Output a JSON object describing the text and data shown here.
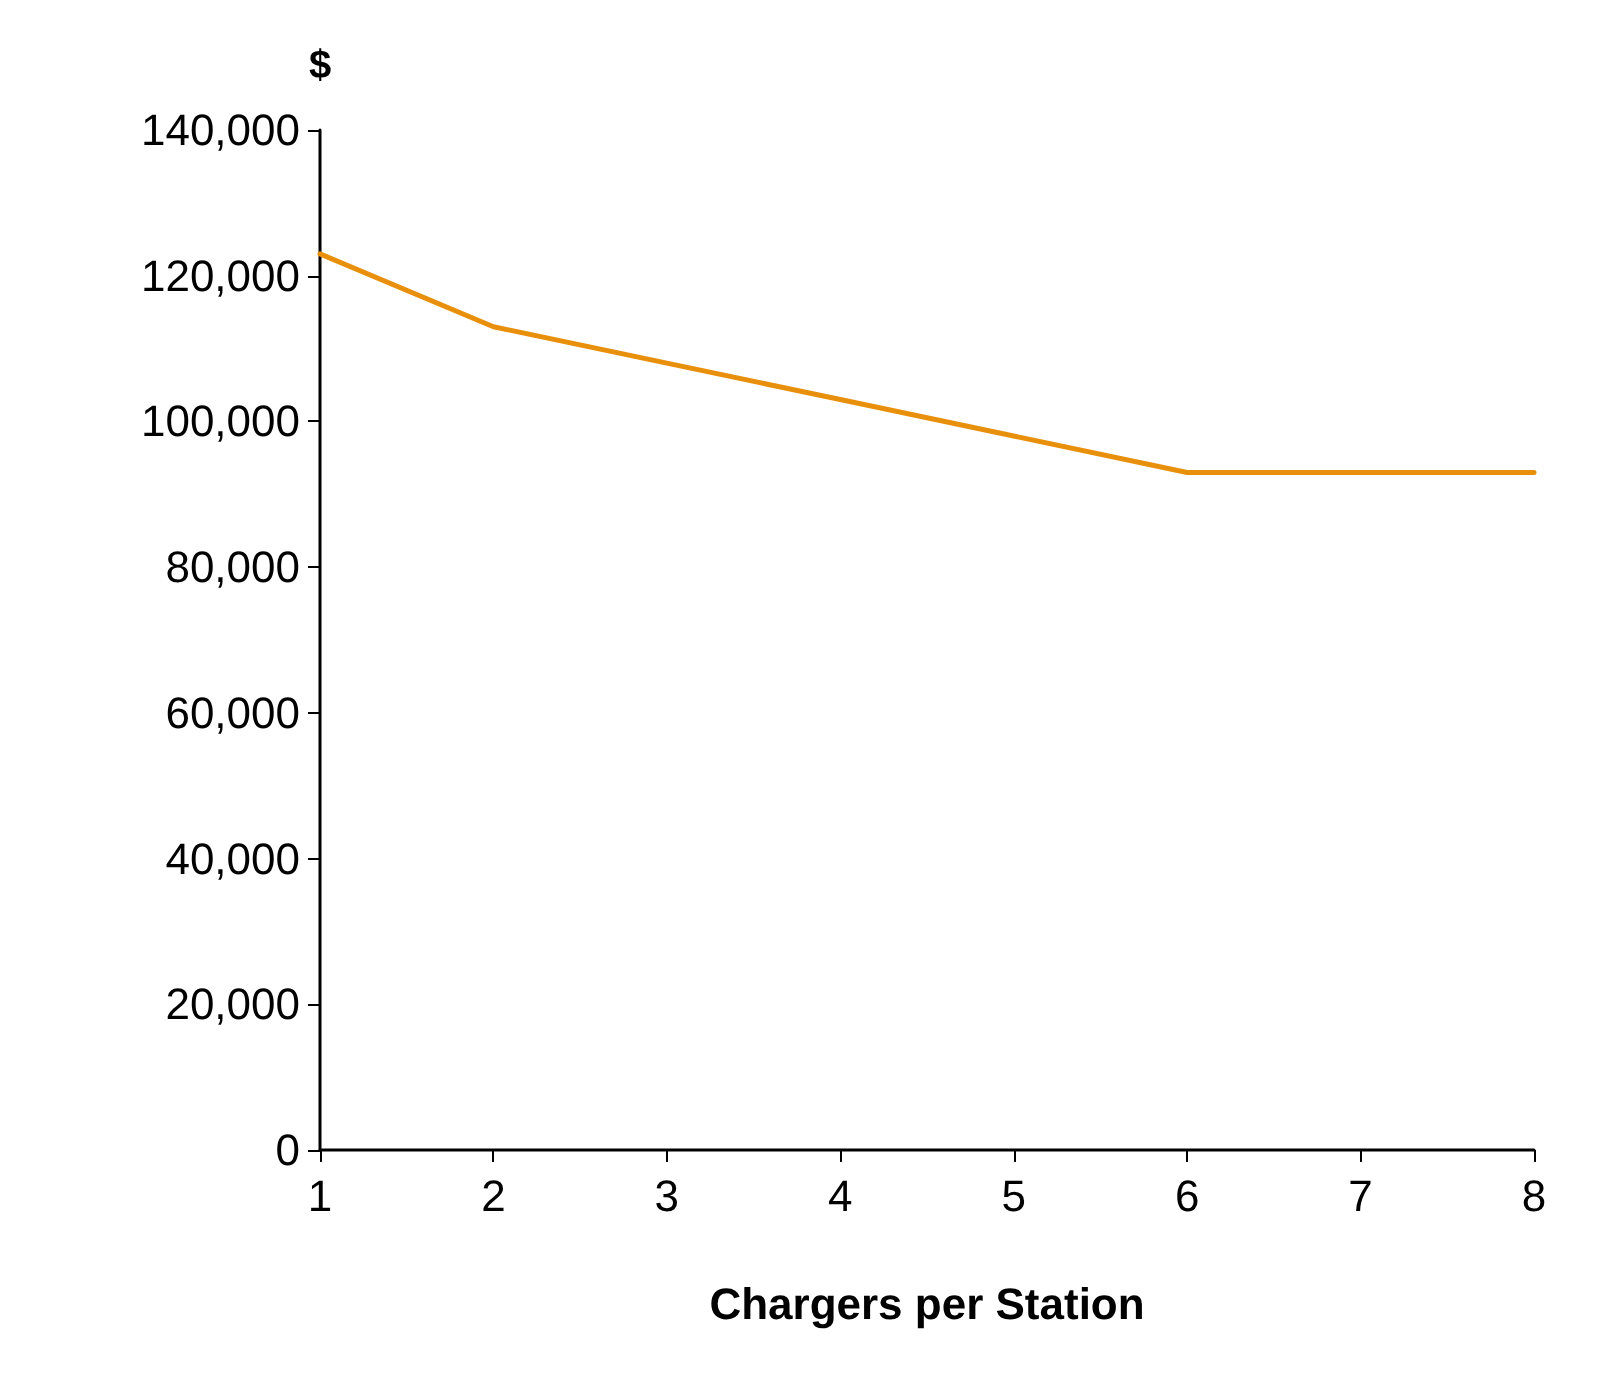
{
  "chart_data": {
    "type": "line",
    "ylabel": "$",
    "xlabel": "Chargers per Station",
    "categories": [
      "1",
      "2",
      "3",
      "4",
      "5",
      "6",
      "7",
      "8"
    ],
    "series": [
      {
        "color": "#e8900c",
        "values": [
          123000,
          113000,
          108000,
          103000,
          98000,
          93000,
          93000,
          93000
        ]
      }
    ],
    "ylim": [
      0,
      140000
    ],
    "yticks": [
      0,
      {
        "value": 20000,
        "label": "20,000"
      },
      {
        "value": 40000,
        "label": "40,000"
      },
      {
        "value": 60000,
        "label": "60,000"
      },
      {
        "value": 80000,
        "label": "80,000"
      },
      {
        "value": 100000,
        "label": "100,000"
      },
      {
        "value": 120000,
        "label": "120,000"
      },
      {
        "value": 140000,
        "label": "140,000"
      }
    ],
    "grid": false,
    "marker": "none",
    "line_style": "solid"
  }
}
